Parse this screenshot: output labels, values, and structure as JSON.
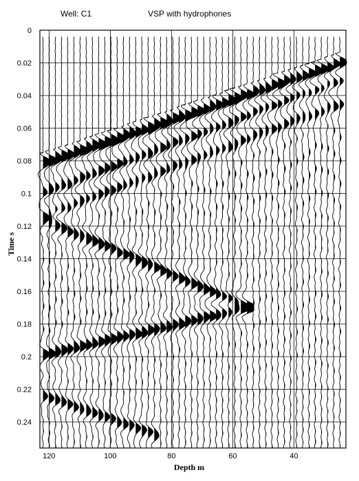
{
  "header": {
    "well_label": "Well: C1",
    "title": "VSP with hydrophones"
  },
  "colors": {
    "background": "#ffffff",
    "trace": "#000000",
    "grid": "#000000"
  },
  "chart_data": {
    "type": "seismic-wiggle-traces",
    "xlabel": "Depth m",
    "ylabel": "Time s",
    "x_axis": {
      "range": [
        123,
        23
      ],
      "reversed": true,
      "ticks": [
        120,
        100,
        80,
        60,
        40
      ],
      "tick_labels": [
        "120",
        "100",
        "80",
        "60",
        "40"
      ]
    },
    "y_axis": {
      "range": [
        0,
        0.256
      ],
      "reversed": true,
      "ticks": [
        0,
        0.02,
        0.04,
        0.06,
        0.08,
        0.1,
        0.12,
        0.14,
        0.16,
        0.18,
        0.2,
        0.22,
        0.24
      ],
      "tick_labels": [
        "0",
        "0.02",
        "0.04",
        "0.06",
        "0.08",
        "0.1",
        "0.12",
        "0.14",
        "0.16",
        "0.18",
        "0.2",
        "0.22",
        "0.24"
      ]
    },
    "grid": true,
    "traces": {
      "depth_start": 122,
      "depth_end": 25,
      "count": 49,
      "fill": "positive-lobes-black"
    },
    "events": [
      {
        "name": "direct-downgoing",
        "t_at_120": 0.08,
        "t_at_25": 0.02
      },
      {
        "name": "downgoing-multiple-1",
        "t_at_120": 0.098,
        "t_at_25": 0.03
      },
      {
        "name": "downgoing-multiple-2",
        "t_at_120": 0.112,
        "t_at_25": 0.045
      },
      {
        "name": "upgoing-reflection-1",
        "t_at_120": 0.118,
        "t_at_60": 0.166
      },
      {
        "name": "upgoing-reflection-2",
        "t_at_120": 0.198,
        "t_at_60": 0.172
      },
      {
        "name": "late-event",
        "t_at_120": 0.225,
        "t_at_90": 0.245
      }
    ]
  }
}
